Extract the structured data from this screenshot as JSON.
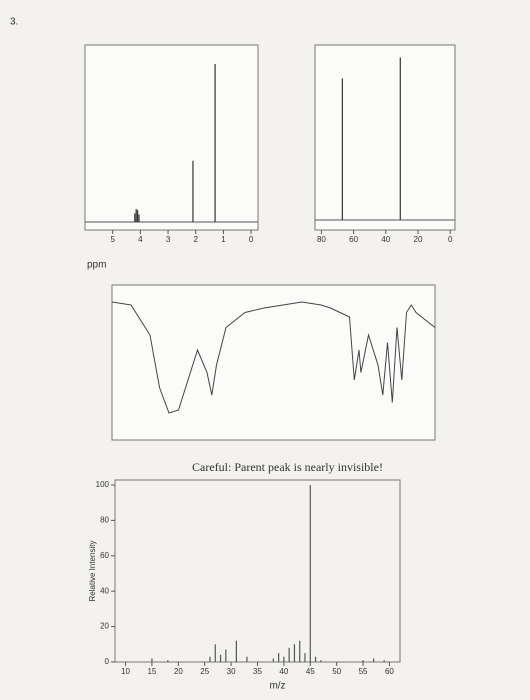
{
  "page_number": "3.",
  "chart_data": [
    {
      "type": "stick",
      "xlabel": "ppm",
      "x": [
        4.2,
        4.15,
        4.1,
        4.05,
        2.1,
        1.3
      ],
      "values": [
        8,
        12,
        11,
        7,
        57,
        147
      ],
      "xlim": [
        6,
        -0.25
      ],
      "ylim": [
        0,
        160
      ],
      "xticks": [
        5,
        4,
        3,
        2,
        1,
        0
      ],
      "color": "#333333"
    },
    {
      "type": "stick",
      "x": [
        67,
        31
      ],
      "values": [
        150,
        172
      ],
      "xlim": [
        84,
        -3
      ],
      "ylim": [
        0,
        180
      ],
      "xticks": [
        80,
        60,
        40,
        20,
        0
      ],
      "color": "#333333"
    },
    {
      "type": "line",
      "x": [
        4000,
        3800,
        3600,
        3500,
        3400,
        3300,
        3200,
        3100,
        3000,
        2950,
        2900,
        2800,
        2600,
        2400,
        2200,
        2000,
        1800,
        1700,
        1500,
        1450,
        1400,
        1380,
        1300,
        1200,
        1150,
        1100,
        1050,
        1000,
        950,
        900,
        850,
        800,
        700,
        600
      ],
      "values": [
        92,
        90,
        70,
        35,
        18,
        20,
        40,
        60,
        45,
        30,
        50,
        75,
        85,
        88,
        90,
        92,
        90,
        88,
        82,
        40,
        60,
        45,
        70,
        50,
        30,
        65,
        25,
        75,
        40,
        85,
        90,
        85,
        80,
        75
      ],
      "xlim": [
        4000,
        600
      ],
      "ylim": [
        0,
        100
      ],
      "color": "#444444"
    },
    {
      "type": "bar",
      "title": "Careful: Parent peak is nearly invisible!",
      "ylabel": "Relative Intensity",
      "xlabel": "m/z",
      "x": [
        15,
        18,
        26,
        27,
        28,
        29,
        31,
        33,
        38,
        39,
        40,
        41,
        42,
        43,
        44,
        45,
        46,
        47,
        55,
        57,
        59
      ],
      "values": [
        2,
        1,
        3,
        10,
        4,
        7,
        12,
        3,
        2,
        5,
        3,
        8,
        10,
        12,
        5,
        100,
        3,
        1,
        1,
        2,
        1
      ],
      "xlim": [
        8,
        62
      ],
      "ylim": [
        0,
        100
      ],
      "xticks": [
        10,
        15,
        20,
        25,
        30,
        35,
        40,
        45,
        50,
        55,
        60
      ],
      "yticks": [
        0,
        20,
        40,
        60,
        80,
        100
      ],
      "color": "#555555"
    }
  ]
}
